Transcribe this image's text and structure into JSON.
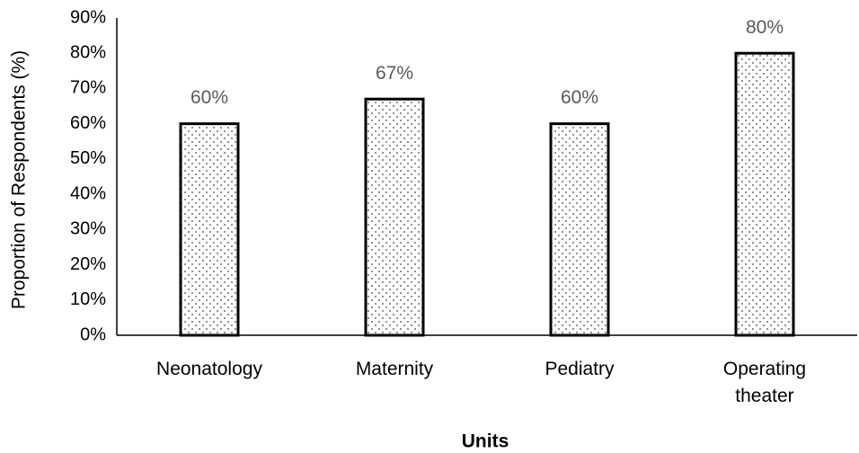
{
  "chart_data": {
    "type": "bar",
    "x_label": "Units",
    "y_label": "Proportion of Respondents (%)",
    "categories": [
      "Neonatology",
      "Maternity",
      "Pediatry",
      "Operating theater"
    ],
    "values": [
      60,
      67,
      60,
      80
    ],
    "value_labels": [
      "60%",
      "67%",
      "60%",
      "80%"
    ],
    "color": "#000000",
    "ylim": [
      0,
      90
    ],
    "yticks": [
      {
        "value": 0,
        "label": "0%"
      },
      {
        "value": 10,
        "label": "10%"
      },
      {
        "value": 20,
        "label": "20%"
      },
      {
        "value": 30,
        "label": "30%"
      },
      {
        "value": 40,
        "label": "40%"
      },
      {
        "value": 50,
        "label": "50%"
      },
      {
        "value": 60,
        "label": "60%"
      },
      {
        "value": 70,
        "label": "70%"
      },
      {
        "value": 80,
        "label": "80%"
      },
      {
        "value": 90,
        "label": "90%"
      }
    ],
    "grid": false
  }
}
